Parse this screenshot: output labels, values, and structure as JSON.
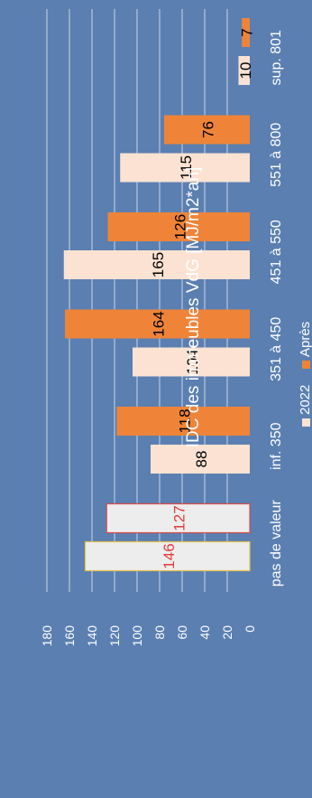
{
  "chart_data": {
    "type": "bar",
    "orientation": "rotated-90",
    "title": "IDC des immeubles VdG [MJ/m2*an]",
    "categories": [
      "pas de valeur",
      "inf. 350",
      "351 à 450",
      "451 à 550",
      "551 à 800",
      "sup. 801"
    ],
    "series": [
      {
        "name": "2022",
        "values": [
          146,
          88,
          104,
          165,
          115,
          10
        ]
      },
      {
        "name": "Après",
        "values": [
          127,
          118,
          164,
          126,
          76,
          7
        ]
      }
    ],
    "ylim": [
      0,
      180
    ],
    "yticks": [
      "0",
      "20",
      "40",
      "60",
      "80",
      "100",
      "120",
      "140",
      "160",
      "180"
    ],
    "grid": true,
    "legend": "bottom",
    "colors": {
      "background": "#5b7fb1",
      "series_2022": "#fbe2d3",
      "series_apres": "#ef8438",
      "nodata_fill": "#ededed",
      "nodata_border_2022": "#e5c24a",
      "nodata_border_apres": "#d94a4a",
      "nodata_label": "#e03c3c",
      "text_light": "#ffffff",
      "text_dark": "#000000",
      "grid": "#c9d5e6"
    }
  }
}
